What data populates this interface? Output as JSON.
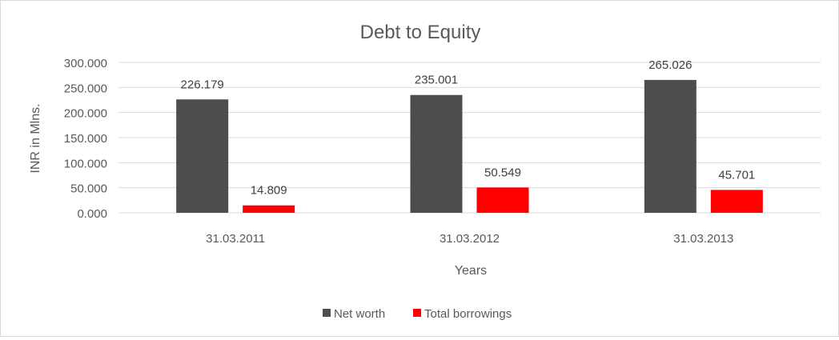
{
  "chart_data": {
    "type": "bar",
    "title": "Debt to Equity",
    "xlabel": "Years",
    "ylabel": "INR in Mlns.",
    "categories": [
      "31.03.2011",
      "31.03.2012",
      "31.03.2013"
    ],
    "series": [
      {
        "name": "Net worth",
        "color": "#4d4d4d",
        "values": [
          226.179,
          235.001,
          265.026
        ],
        "labels": [
          "226.179",
          "235.001",
          "265.026"
        ]
      },
      {
        "name": "Total borrowings",
        "color": "#ff0000",
        "values": [
          14.809,
          50.549,
          45.701
        ],
        "labels": [
          "14.809",
          "50.549",
          "45.701"
        ]
      }
    ],
    "ylim": [
      0,
      300
    ],
    "yticks": [
      0,
      50,
      100,
      150,
      200,
      250,
      300
    ],
    "ytick_labels": [
      "0.000",
      "50.000",
      "100.000",
      "150.000",
      "200.000",
      "250.000",
      "300.000"
    ],
    "grid": true,
    "legend_position": "bottom"
  }
}
